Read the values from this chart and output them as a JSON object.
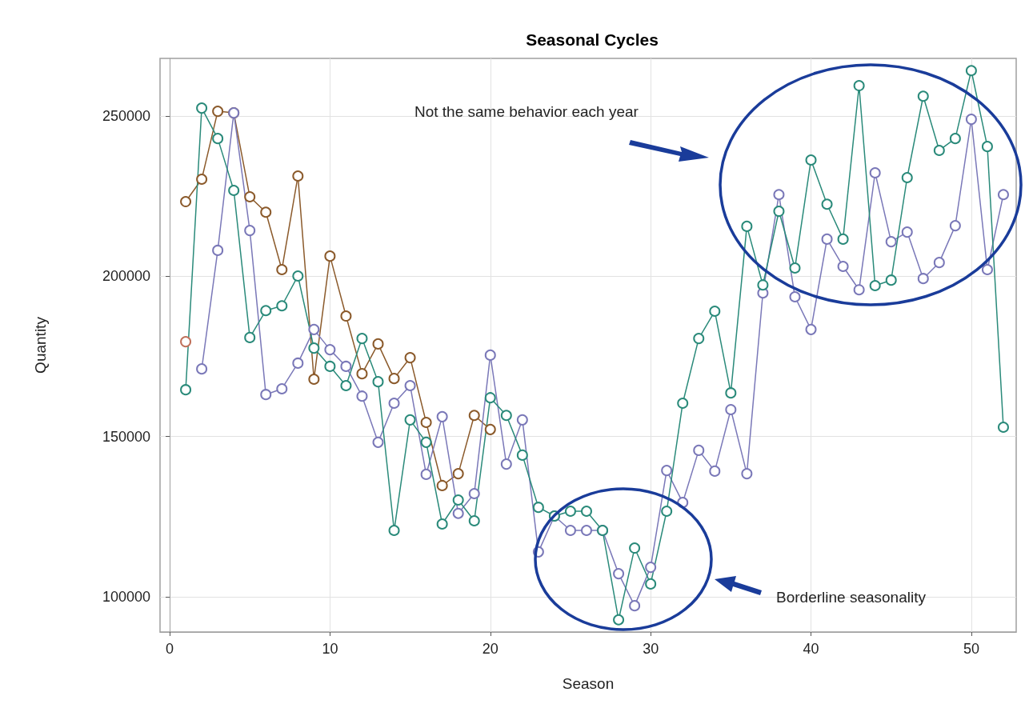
{
  "chart_data": {
    "type": "line",
    "title": "Seasonal Cycles",
    "xlabel": "Season",
    "ylabel": "Quantity",
    "annotations": [
      "Not the same behavior each year",
      "Borderline seasonality"
    ],
    "x": [
      1,
      2,
      3,
      4,
      5,
      6,
      7,
      8,
      9,
      10,
      11,
      12,
      13,
      14,
      15,
      16,
      17,
      18,
      19,
      20,
      21,
      22,
      23,
      24,
      25,
      26,
      27,
      28,
      29,
      30,
      31,
      32,
      33,
      34,
      35,
      36,
      37,
      38,
      39,
      40,
      41,
      42,
      43,
      44,
      45,
      46,
      47,
      48,
      49,
      50,
      51,
      52
    ],
    "series": [
      {
        "color": "#8b5a2b",
        "x": [
          1,
          2,
          3,
          4,
          5,
          6,
          7,
          8,
          9,
          10,
          11,
          12,
          13,
          14,
          15,
          16,
          17,
          18,
          19,
          20
        ],
        "values": [
          223300,
          230300,
          251500,
          251000,
          224800,
          220000,
          202100,
          231300,
          167900,
          206300,
          187600,
          169600,
          178900,
          168100,
          174600,
          154400,
          134700,
          138400,
          156600,
          152200
        ]
      },
      {
        "color": "#c0705a",
        "x": [
          1
        ],
        "values": [
          179600
        ]
      },
      {
        "color": "#7a78b8",
        "x": [
          2,
          3,
          4,
          5,
          6,
          7,
          8,
          9,
          10,
          11,
          12,
          13,
          14,
          15,
          16,
          17,
          18,
          19,
          20,
          21,
          22,
          23,
          24,
          25,
          26,
          27,
          28,
          29,
          30,
          31,
          32,
          33,
          34,
          35,
          36,
          37,
          38,
          39,
          40,
          41,
          42,
          43,
          44,
          45,
          46,
          47,
          48,
          49,
          50,
          51,
          52
        ],
        "values": [
          171100,
          208100,
          251000,
          214300,
          163100,
          164900,
          172900,
          183400,
          177100,
          171900,
          162600,
          148200,
          160400,
          165900,
          138200,
          156200,
          126000,
          132200,
          175400,
          141400,
          155200,
          114000,
          125200,
          120700,
          120700,
          120700,
          107200,
          97200,
          109200,
          139400,
          129400,
          145700,
          139200,
          158400,
          138400,
          194800,
          225500,
          193600,
          183400,
          211600,
          203100,
          195800,
          232300,
          210800,
          213800,
          199300,
          204300,
          215800,
          249000,
          202100,
          225500
        ]
      },
      {
        "color": "#2a8a7a",
        "values": [
          164600,
          252500,
          243000,
          226800,
          180900,
          189300,
          190800,
          200100,
          177600,
          171900,
          165900,
          180600,
          167100,
          120700,
          155200,
          148200,
          122700,
          130200,
          123700,
          162100,
          156600,
          144200,
          127900,
          125200,
          126700,
          126700,
          120700,
          92800,
          115200,
          104000,
          126700,
          160400,
          180600,
          189100,
          163600,
          215600,
          197300,
          220300,
          202600,
          236300,
          222500,
          211600,
          259500,
          197100,
          198800,
          230800,
          256200,
          239300,
          243000,
          264200,
          240500,
          152900
        ]
      }
    ],
    "xlim": [
      -0.6,
      52.8
    ],
    "xticks": [
      0,
      10,
      20,
      30,
      40,
      50
    ],
    "ylim": [
      89000,
      268000
    ],
    "yticks": [
      100000,
      150000,
      200000,
      250000
    ],
    "grid": true,
    "marker": "circle",
    "line_style": "solid"
  }
}
